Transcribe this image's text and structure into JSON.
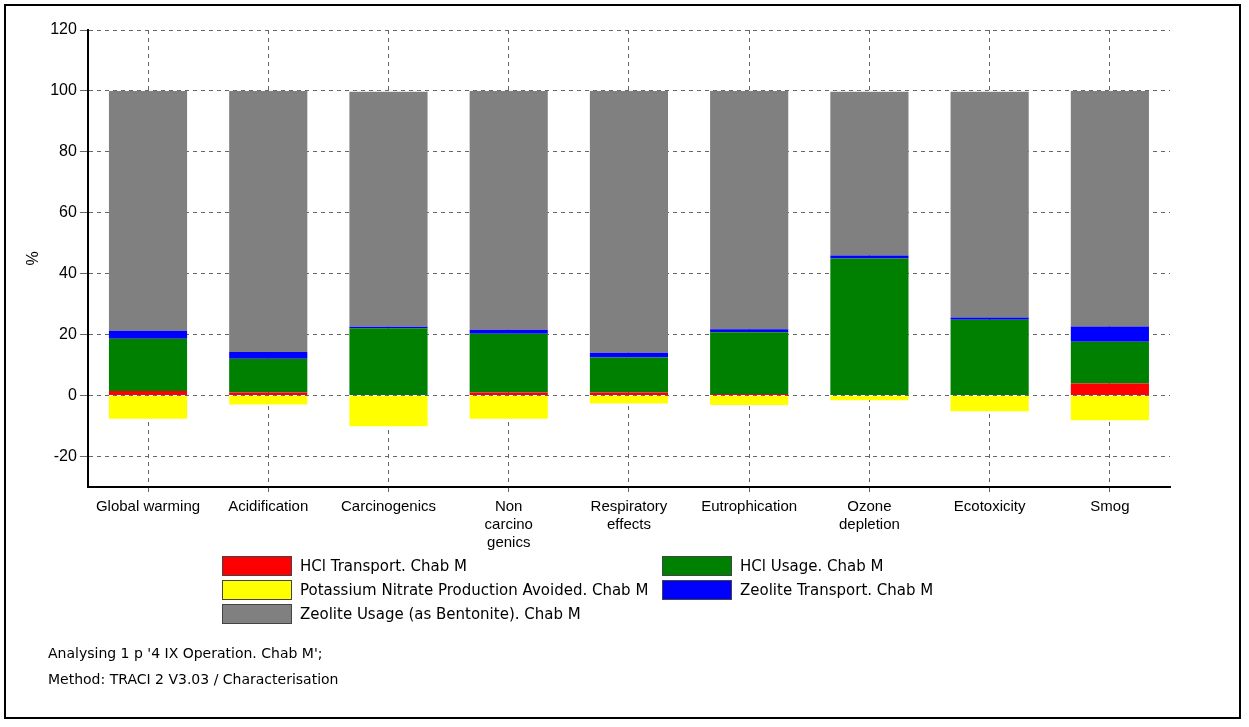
{
  "chart_data": {
    "type": "bar",
    "stacked": true,
    "ylabel": "%",
    "categories": [
      "Global warming",
      "Acidification",
      "Carcinogenics",
      "Non carcino genics",
      "Respiratory effects",
      "Eutrophication",
      "Ozone depletion",
      "Ecotoxicity",
      "Smog"
    ],
    "series": [
      {
        "name": "HCl Transport. Chab M",
        "color": "#ff0000",
        "values": [
          1.5,
          1,
          null,
          1,
          1,
          0.5,
          null,
          null,
          4
        ]
      },
      {
        "name": "HCl Usage. Chab M",
        "color": "#008000",
        "values": [
          17.2,
          11.1,
          22.1,
          19.3,
          11.5,
          20.3,
          45,
          24.9,
          13.7
        ]
      },
      {
        "name": "Potassium Nitrate Production Avoided. Chab M",
        "color": "#ffff00",
        "values": [
          -7.6,
          -2.9,
          -10.1,
          -7.6,
          -2.6,
          -3.1,
          -1.5,
          -5.1,
          -8.1
        ]
      },
      {
        "name": "Zeolite Transport. Chab M",
        "color": "#0000ff",
        "values": [
          2.6,
          2.2,
          0.5,
          1.3,
          1.6,
          1,
          1,
          0.7,
          5
        ]
      },
      {
        "name": "Zeolite Usage (as Bentonite). Chab M",
        "color": "#808080",
        "values": [
          78.7,
          85.7,
          77.1,
          78.4,
          85.9,
          78.2,
          53.7,
          74.1,
          77.3
        ]
      }
    ],
    "ylim": [
      -30,
      120
    ],
    "yticks": [
      -20,
      0,
      20,
      40,
      60,
      80,
      100,
      120
    ],
    "grid": true,
    "legend": "bottom",
    "annotations": [
      "Analysing 1 p '4 IX Operation. Chab M';",
      "Method: TRACI 2 V3.03 / Characterisation"
    ]
  }
}
